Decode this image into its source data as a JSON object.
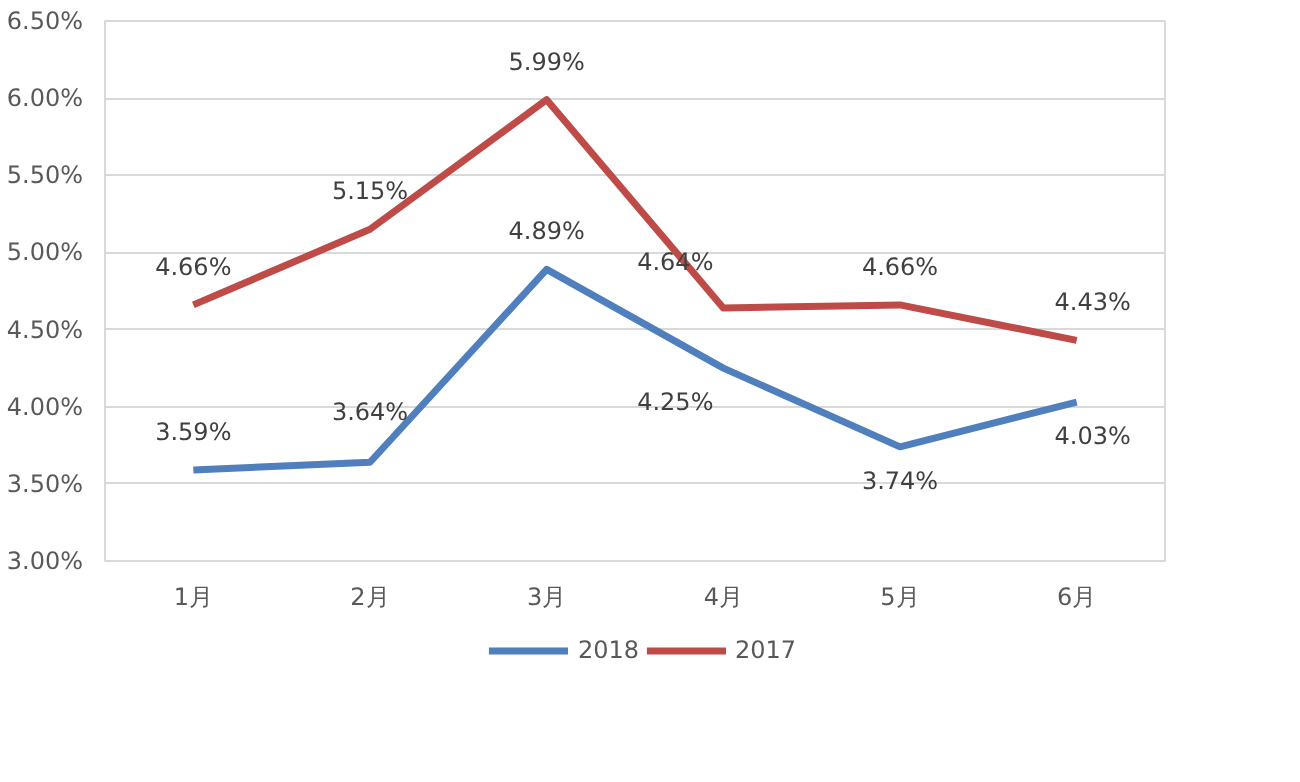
{
  "chart_data": {
    "type": "line",
    "categories": [
      "1月",
      "2月",
      "3月",
      "4月",
      "5月",
      "6月"
    ],
    "series": [
      {
        "name": "2018",
        "color": "#4f7fbc",
        "values": [
          3.59,
          3.64,
          4.89,
          4.25,
          3.74,
          4.03
        ],
        "value_labels": [
          "3.59%",
          "3.64%",
          "4.89%",
          "4.25%",
          "3.74%",
          "4.03%"
        ]
      },
      {
        "name": "2017",
        "color": "#be4b48",
        "values": [
          4.66,
          5.15,
          5.99,
          4.64,
          4.66,
          4.43
        ],
        "value_labels": [
          "4.66%",
          "5.15%",
          "5.99%",
          "4.64%",
          "4.66%",
          "4.43%"
        ]
      }
    ],
    "ylim": [
      3.0,
      6.5
    ],
    "yticks": [
      {
        "value": 3.0,
        "label": "3.00%"
      },
      {
        "value": 3.5,
        "label": "3.50%"
      },
      {
        "value": 4.0,
        "label": "4.00%"
      },
      {
        "value": 4.5,
        "label": "4.50%"
      },
      {
        "value": 5.0,
        "label": "5.00%"
      },
      {
        "value": 5.5,
        "label": "5.50%"
      },
      {
        "value": 6.0,
        "label": "6.00%"
      },
      {
        "value": 6.5,
        "label": "6.50%"
      }
    ],
    "grid": "y",
    "legend": "bottom",
    "marker": "none",
    "line_style": "solid"
  }
}
